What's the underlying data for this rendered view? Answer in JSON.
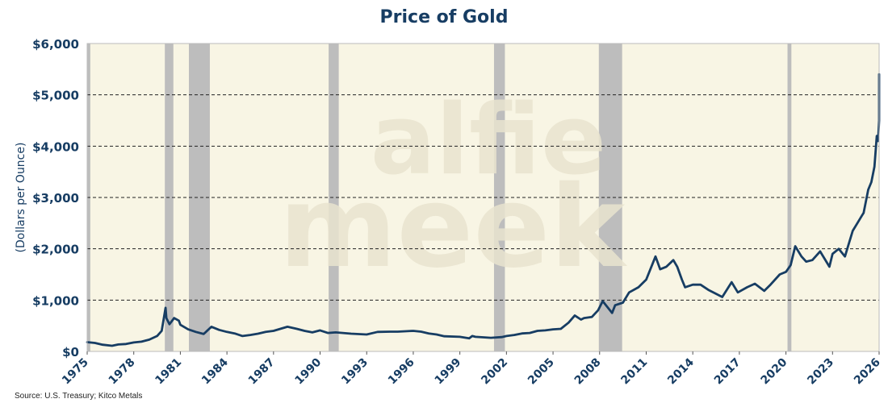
{
  "chart_data": {
    "type": "line",
    "title": "Price of Gold",
    "xlabel": "",
    "ylabel": "(Dollars per Ounce)",
    "xlim": [
      1975,
      2026
    ],
    "ylim": [
      0,
      6000
    ],
    "x_ticks": [
      1975,
      1978,
      1981,
      1984,
      1987,
      1990,
      1993,
      1996,
      1999,
      2002,
      2005,
      2008,
      2011,
      2014,
      2017,
      2020,
      2023,
      2026
    ],
    "y_ticks": [
      {
        "value": 0,
        "label": "$0"
      },
      {
        "value": 1000,
        "label": "$1,000"
      },
      {
        "value": 2000,
        "label": "$2,000"
      },
      {
        "value": 3000,
        "label": "$3,000"
      },
      {
        "value": 4000,
        "label": "$4,000"
      },
      {
        "value": 5000,
        "label": "$5,000"
      },
      {
        "value": 6000,
        "label": "$6,000"
      }
    ],
    "grid": "horizontal dashed",
    "recessions": [
      [
        1975.0,
        1975.2
      ],
      [
        1980.0,
        1980.55
      ],
      [
        1981.55,
        1982.9
      ],
      [
        1990.55,
        1991.2
      ],
      [
        2001.2,
        2001.9
      ],
      [
        2007.95,
        2009.45
      ],
      [
        2020.1,
        2020.35
      ]
    ],
    "series": [
      {
        "name": "Gold Price",
        "color": "#173d63",
        "points": [
          [
            1975.0,
            180
          ],
          [
            1975.5,
            165
          ],
          [
            1976.0,
            130
          ],
          [
            1976.6,
            110
          ],
          [
            1977.0,
            135
          ],
          [
            1977.5,
            145
          ],
          [
            1978.0,
            175
          ],
          [
            1978.5,
            190
          ],
          [
            1979.0,
            230
          ],
          [
            1979.5,
            300
          ],
          [
            1979.8,
            400
          ],
          [
            1980.05,
            850
          ],
          [
            1980.1,
            650
          ],
          [
            1980.3,
            530
          ],
          [
            1980.6,
            650
          ],
          [
            1980.9,
            600
          ],
          [
            1981.0,
            520
          ],
          [
            1981.5,
            430
          ],
          [
            1982.0,
            380
          ],
          [
            1982.5,
            340
          ],
          [
            1983.0,
            480
          ],
          [
            1983.5,
            420
          ],
          [
            1984.0,
            380
          ],
          [
            1984.5,
            350
          ],
          [
            1985.0,
            300
          ],
          [
            1985.5,
            320
          ],
          [
            1986.0,
            345
          ],
          [
            1986.5,
            380
          ],
          [
            1987.0,
            400
          ],
          [
            1987.9,
            480
          ],
          [
            1988.5,
            440
          ],
          [
            1989.0,
            400
          ],
          [
            1989.5,
            370
          ],
          [
            1990.0,
            410
          ],
          [
            1990.5,
            360
          ],
          [
            1991.0,
            370
          ],
          [
            1992.0,
            345
          ],
          [
            1993.0,
            330
          ],
          [
            1993.7,
            380
          ],
          [
            1994.5,
            385
          ],
          [
            1995.0,
            385
          ],
          [
            1996.0,
            400
          ],
          [
            1996.5,
            385
          ],
          [
            1997.0,
            350
          ],
          [
            1997.5,
            330
          ],
          [
            1998.0,
            295
          ],
          [
            1999.0,
            285
          ],
          [
            1999.6,
            255
          ],
          [
            1999.8,
            300
          ],
          [
            2000.0,
            285
          ],
          [
            2000.5,
            275
          ],
          [
            2001.0,
            265
          ],
          [
            2001.7,
            280
          ],
          [
            2002.0,
            300
          ],
          [
            2002.5,
            320
          ],
          [
            2003.0,
            350
          ],
          [
            2003.5,
            360
          ],
          [
            2004.0,
            400
          ],
          [
            2004.5,
            410
          ],
          [
            2005.0,
            430
          ],
          [
            2005.5,
            440
          ],
          [
            2006.0,
            560
          ],
          [
            2006.4,
            700
          ],
          [
            2006.8,
            620
          ],
          [
            2007.0,
            650
          ],
          [
            2007.5,
            670
          ],
          [
            2007.9,
            800
          ],
          [
            2008.2,
            980
          ],
          [
            2008.8,
            750
          ],
          [
            2009.0,
            900
          ],
          [
            2009.5,
            950
          ],
          [
            2009.9,
            1150
          ],
          [
            2010.5,
            1250
          ],
          [
            2011.0,
            1400
          ],
          [
            2011.6,
            1850
          ],
          [
            2011.9,
            1600
          ],
          [
            2012.3,
            1650
          ],
          [
            2012.75,
            1780
          ],
          [
            2013.0,
            1650
          ],
          [
            2013.3,
            1400
          ],
          [
            2013.5,
            1250
          ],
          [
            2014.0,
            1300
          ],
          [
            2014.5,
            1300
          ],
          [
            2015.0,
            1200
          ],
          [
            2015.9,
            1060
          ],
          [
            2016.5,
            1350
          ],
          [
            2016.9,
            1150
          ],
          [
            2017.5,
            1250
          ],
          [
            2018.0,
            1320
          ],
          [
            2018.6,
            1180
          ],
          [
            2019.0,
            1300
          ],
          [
            2019.6,
            1500
          ],
          [
            2020.0,
            1550
          ],
          [
            2020.3,
            1680
          ],
          [
            2020.6,
            2050
          ],
          [
            2021.0,
            1850
          ],
          [
            2021.3,
            1750
          ],
          [
            2021.7,
            1780
          ],
          [
            2022.2,
            1950
          ],
          [
            2022.8,
            1650
          ],
          [
            2023.0,
            1900
          ],
          [
            2023.4,
            2000
          ],
          [
            2023.8,
            1850
          ],
          [
            2024.0,
            2050
          ],
          [
            2024.3,
            2350
          ],
          [
            2024.6,
            2500
          ],
          [
            2024.9,
            2650
          ],
          [
            2025.0,
            2700
          ],
          [
            2025.3,
            3150
          ],
          [
            2025.5,
            3300
          ],
          [
            2025.7,
            3600
          ],
          [
            2025.85,
            4200
          ],
          [
            2025.93,
            4100
          ],
          [
            2026.0,
            4500
          ],
          [
            2026.05,
            5000
          ],
          [
            2026.08,
            5400
          ],
          [
            2026.12,
            5000
          ]
        ]
      }
    ],
    "watermark": [
      "alfie",
      "meek"
    ],
    "source": "Source: U.S. Treasury; Kitco Metals"
  }
}
